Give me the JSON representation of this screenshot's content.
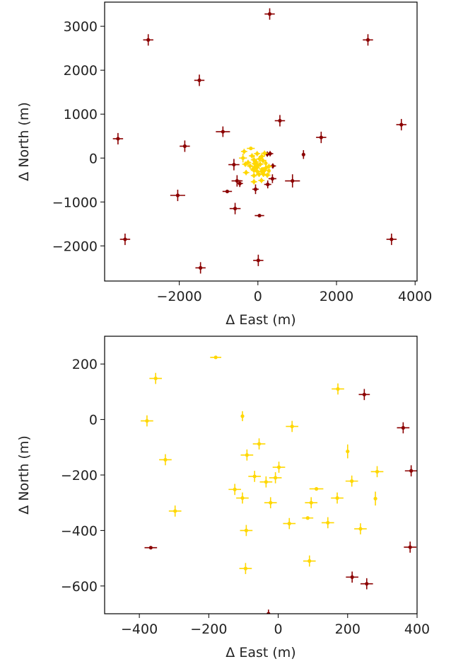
{
  "chart_data": [
    {
      "type": "scatter",
      "title": "",
      "xlabel": "Δ East (m)",
      "ylabel": "Δ North (m)",
      "xlim": [
        -3900,
        4050
      ],
      "ylim": [
        -2800,
        3550
      ],
      "xticks": [
        -2000,
        0,
        2000,
        4000
      ],
      "yticks": [
        -2000,
        -1000,
        0,
        1000,
        2000,
        3000
      ],
      "xtick_labels": [
        "−2000",
        "0",
        "2000",
        "4000"
      ],
      "ytick_labels": [
        "−2000",
        "−1000",
        "0",
        "1000",
        "2000",
        "3000"
      ],
      "colors": {
        "outer": "#8b0000",
        "inner": "#ffd700"
      },
      "series": [
        {
          "color_key": "outer",
          "points": [
            {
              "x": 300,
              "y": 3280,
              "ex": 130,
              "ey": 130
            },
            {
              "x": -2790,
              "y": 2690,
              "ex": 130,
              "ey": 130
            },
            {
              "x": 2800,
              "y": 2690,
              "ex": 130,
              "ey": 130
            },
            {
              "x": -1490,
              "y": 1770,
              "ex": 130,
              "ey": 130
            },
            {
              "x": 560,
              "y": 850,
              "ex": 130,
              "ey": 130
            },
            {
              "x": 3650,
              "y": 760,
              "ex": 130,
              "ey": 130
            },
            {
              "x": -890,
              "y": 600,
              "ex": 180,
              "ey": 120
            },
            {
              "x": -3560,
              "y": 440,
              "ex": 130,
              "ey": 130
            },
            {
              "x": 1610,
              "y": 470,
              "ex": 130,
              "ey": 130
            },
            {
              "x": -1860,
              "y": 270,
              "ex": 130,
              "ey": 130
            },
            {
              "x": 1160,
              "y": 80,
              "ex": 0,
              "ey": 100
            },
            {
              "x": 310,
              "y": 100,
              "ex": 80,
              "ey": 60
            },
            {
              "x": 380,
              "y": -180,
              "ex": 80,
              "ey": 60
            },
            {
              "x": -610,
              "y": -150,
              "ex": 140,
              "ey": 130
            },
            {
              "x": -530,
              "y": -520,
              "ex": 140,
              "ey": 130
            },
            {
              "x": -460,
              "y": -580,
              "ex": 80,
              "ey": 80
            },
            {
              "x": -60,
              "y": -710,
              "ex": 80,
              "ey": 110
            },
            {
              "x": 370,
              "y": -470,
              "ex": 100,
              "ey": 100
            },
            {
              "x": 880,
              "y": -520,
              "ex": 190,
              "ey": 150
            },
            {
              "x": 250,
              "y": -600,
              "ex": 90,
              "ey": 90
            },
            {
              "x": 240,
              "y": 90,
              "ex": 80,
              "ey": 60
            },
            {
              "x": -780,
              "y": -760,
              "ex": 120,
              "ey": 0
            },
            {
              "x": -2040,
              "y": -850,
              "ex": 190,
              "ey": 130
            },
            {
              "x": -580,
              "y": -1150,
              "ex": 140,
              "ey": 130
            },
            {
              "x": 40,
              "y": -1310,
              "ex": 120,
              "ey": 0
            },
            {
              "x": -3380,
              "y": -1850,
              "ex": 130,
              "ey": 130
            },
            {
              "x": 3400,
              "y": -1850,
              "ex": 130,
              "ey": 130
            },
            {
              "x": -1460,
              "y": -2500,
              "ex": 130,
              "ey": 130
            },
            {
              "x": 10,
              "y": -2330,
              "ex": 130,
              "ey": 130
            }
          ]
        },
        {
          "color_key": "inner",
          "points": [
            {
              "x": -180,
              "y": 220,
              "ex": 100,
              "ey": 0
            },
            {
              "x": -380,
              "y": 0,
              "ex": 100,
              "ey": 100
            },
            {
              "x": -350,
              "y": 150,
              "ex": 80,
              "ey": 60
            },
            {
              "x": 170,
              "y": 110,
              "ex": 80,
              "ey": 60
            },
            {
              "x": -100,
              "y": -40,
              "ex": 80,
              "ey": 100
            },
            {
              "x": 40,
              "y": -20,
              "ex": 80,
              "ey": 60
            },
            {
              "x": -50,
              "y": -90,
              "ex": 80,
              "ey": 60
            },
            {
              "x": -80,
              "y": -130,
              "ex": 80,
              "ey": 60
            },
            {
              "x": -320,
              "y": -140,
              "ex": 80,
              "ey": 60
            },
            {
              "x": 0,
              "y": -170,
              "ex": 80,
              "ey": 60
            },
            {
              "x": -70,
              "y": -200,
              "ex": 80,
              "ey": 60
            },
            {
              "x": -30,
              "y": -220,
              "ex": 80,
              "ey": 60
            },
            {
              "x": 200,
              "y": -120,
              "ex": 0,
              "ey": 80
            },
            {
              "x": 210,
              "y": -220,
              "ex": 80,
              "ey": 60
            },
            {
              "x": 280,
              "y": -190,
              "ex": 80,
              "ey": 60
            },
            {
              "x": -120,
              "y": -250,
              "ex": 80,
              "ey": 60
            },
            {
              "x": -100,
              "y": -280,
              "ex": 80,
              "ey": 60
            },
            {
              "x": -20,
              "y": -300,
              "ex": 80,
              "ey": 60
            },
            {
              "x": 110,
              "y": -250,
              "ex": 80,
              "ey": 0
            },
            {
              "x": 170,
              "y": -280,
              "ex": 80,
              "ey": 60
            },
            {
              "x": 95,
              "y": -300,
              "ex": 80,
              "ey": 60
            },
            {
              "x": -300,
              "y": -330,
              "ex": 80,
              "ey": 60
            },
            {
              "x": 280,
              "y": -290,
              "ex": 0,
              "ey": 80
            },
            {
              "x": 30,
              "y": -370,
              "ex": 80,
              "ey": 60
            },
            {
              "x": 140,
              "y": -370,
              "ex": 80,
              "ey": 60
            },
            {
              "x": 240,
              "y": -390,
              "ex": 80,
              "ey": 60
            },
            {
              "x": -100,
              "y": -400,
              "ex": 80,
              "ey": 60
            },
            {
              "x": 90,
              "y": -510,
              "ex": 80,
              "ey": 60
            },
            {
              "x": -100,
              "y": -540,
              "ex": 80,
              "ey": 60
            },
            {
              "x": -250,
              "y": -100,
              "ex": 80,
              "ey": 60
            },
            {
              "x": -150,
              "y": 50,
              "ex": 80,
              "ey": 60
            },
            {
              "x": 100,
              "y": 40,
              "ex": 80,
              "ey": 60
            },
            {
              "x": 130,
              "y": -60,
              "ex": 80,
              "ey": 60
            },
            {
              "x": -200,
              "y": -180,
              "ex": 80,
              "ey": 60
            },
            {
              "x": 60,
              "y": -140,
              "ex": 80,
              "ey": 60
            },
            {
              "x": -20,
              "y": 100,
              "ex": 80,
              "ey": 60
            }
          ]
        }
      ]
    },
    {
      "type": "scatter",
      "title": "",
      "xlabel": "Δ East (m)",
      "ylabel": "Δ North (m)",
      "xlim": [
        -500,
        400
      ],
      "ylim": [
        -700,
        300
      ],
      "xticks": [
        -400,
        -200,
        0,
        200,
        400
      ],
      "yticks": [
        -600,
        -400,
        -200,
        0,
        200
      ],
      "xtick_labels": [
        "−400",
        "−200",
        "0",
        "200",
        "400"
      ],
      "ytick_labels": [
        "−600",
        "−400",
        "−200",
        "0",
        "200"
      ],
      "colors": {
        "outer": "#8b0000",
        "inner": "#ffd700"
      },
      "series": [
        {
          "color_key": "inner",
          "points": [
            {
              "x": -180,
              "y": 224,
              "ex": 16,
              "ey": 0
            },
            {
              "x": -353,
              "y": 148,
              "ex": 18,
              "ey": 20
            },
            {
              "x": 172,
              "y": 110,
              "ex": 18,
              "ey": 20
            },
            {
              "x": -378,
              "y": -5,
              "ex": 18,
              "ey": 20
            },
            {
              "x": -103,
              "y": 12,
              "ex": 0,
              "ey": 18
            },
            {
              "x": 40,
              "y": -25,
              "ex": 18,
              "ey": 20
            },
            {
              "x": -55,
              "y": -88,
              "ex": 18,
              "ey": 20
            },
            {
              "x": -90,
              "y": -128,
              "ex": 18,
              "ey": 20
            },
            {
              "x": -325,
              "y": -145,
              "ex": 18,
              "ey": 20
            },
            {
              "x": 2,
              "y": -172,
              "ex": 18,
              "ey": 20
            },
            {
              "x": -68,
              "y": -205,
              "ex": 18,
              "ey": 20
            },
            {
              "x": -35,
              "y": -225,
              "ex": 18,
              "ey": 20
            },
            {
              "x": -8,
              "y": -210,
              "ex": 18,
              "ey": 20
            },
            {
              "x": 200,
              "y": -115,
              "ex": 0,
              "ey": 25
            },
            {
              "x": 212,
              "y": -222,
              "ex": 18,
              "ey": 20
            },
            {
              "x": 285,
              "y": -188,
              "ex": 18,
              "ey": 20
            },
            {
              "x": -125,
              "y": -252,
              "ex": 18,
              "ey": 20
            },
            {
              "x": -103,
              "y": -283,
              "ex": 18,
              "ey": 20
            },
            {
              "x": -22,
              "y": -300,
              "ex": 18,
              "ey": 20
            },
            {
              "x": 110,
              "y": -250,
              "ex": 20,
              "ey": 0
            },
            {
              "x": 170,
              "y": -283,
              "ex": 18,
              "ey": 20
            },
            {
              "x": 95,
              "y": -300,
              "ex": 18,
              "ey": 20
            },
            {
              "x": -297,
              "y": -330,
              "ex": 18,
              "ey": 20
            },
            {
              "x": 280,
              "y": -285,
              "ex": 0,
              "ey": 25
            },
            {
              "x": 32,
              "y": -375,
              "ex": 18,
              "ey": 20
            },
            {
              "x": 143,
              "y": -372,
              "ex": 18,
              "ey": 20
            },
            {
              "x": 237,
              "y": -394,
              "ex": 18,
              "ey": 20
            },
            {
              "x": -92,
              "y": -400,
              "ex": 18,
              "ey": 20
            },
            {
              "x": 85,
              "y": -355,
              "ex": 16,
              "ey": 0
            },
            {
              "x": 90,
              "y": -510,
              "ex": 18,
              "ey": 20
            },
            {
              "x": -94,
              "y": -537,
              "ex": 18,
              "ey": 20
            }
          ]
        },
        {
          "color_key": "outer",
          "points": [
            {
              "x": 248,
              "y": 90,
              "ex": 16,
              "ey": 20
            },
            {
              "x": 360,
              "y": -30,
              "ex": 18,
              "ey": 20
            },
            {
              "x": 383,
              "y": -185,
              "ex": 18,
              "ey": 20
            },
            {
              "x": -367,
              "y": -462,
              "ex": 18,
              "ey": 0
            },
            {
              "x": 380,
              "y": -460,
              "ex": 18,
              "ey": 20
            },
            {
              "x": 213,
              "y": -568,
              "ex": 18,
              "ey": 20
            },
            {
              "x": 255,
              "y": -592,
              "ex": 18,
              "ey": 20
            },
            {
              "x": -28,
              "y": -700,
              "ex": 0,
              "ey": 15
            }
          ]
        }
      ]
    }
  ]
}
